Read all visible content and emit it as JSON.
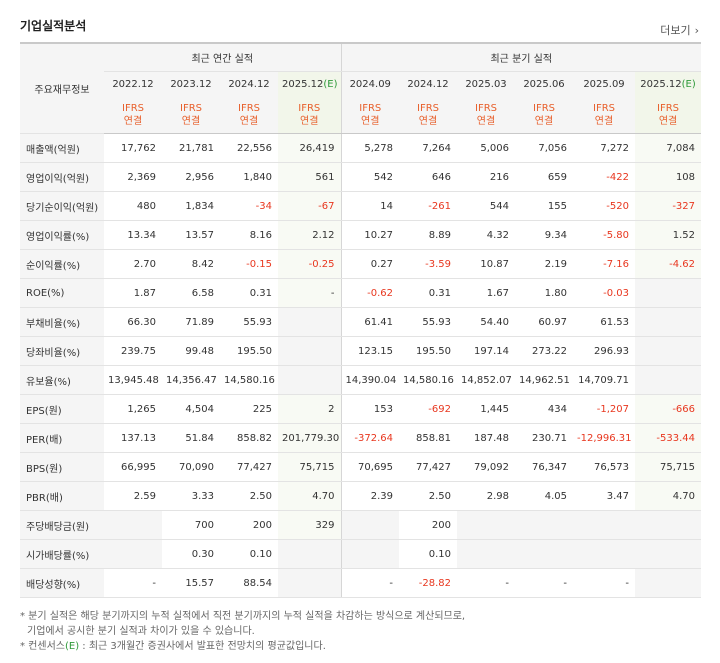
{
  "title": "기업실적분석",
  "more_label": "더보기",
  "header": {
    "label": "주요재무정보",
    "annual_group": "최근 연간 실적",
    "quarter_group": "최근 분기 실적",
    "periods": [
      {
        "label": "2022.12",
        "est": false
      },
      {
        "label": "2023.12",
        "est": false
      },
      {
        "label": "2024.12",
        "est": false
      },
      {
        "label": "2025.12",
        "est": true
      },
      {
        "label": "2024.09",
        "est": false
      },
      {
        "label": "2024.12",
        "est": false
      },
      {
        "label": "2025.03",
        "est": false
      },
      {
        "label": "2025.06",
        "est": false
      },
      {
        "label": "2025.09",
        "est": false
      },
      {
        "label": "2025.12",
        "est": true
      }
    ],
    "est_mark": "(E)",
    "basis_line1": "IFRS",
    "basis_line2": "연결"
  },
  "rows": [
    {
      "label": "매출액(억원)",
      "values": [
        "17,762",
        "21,781",
        "22,556",
        "26,419",
        "5,278",
        "7,264",
        "5,006",
        "7,056",
        "7,272",
        "7,084"
      ]
    },
    {
      "label": "영업이익(억원)",
      "values": [
        "2,369",
        "2,956",
        "1,840",
        "561",
        "542",
        "646",
        "216",
        "659",
        "-422",
        "108"
      ]
    },
    {
      "label": "당기순이익(억원)",
      "values": [
        "480",
        "1,834",
        "-34",
        "-67",
        "14",
        "-261",
        "544",
        "155",
        "-520",
        "-327"
      ]
    },
    {
      "label": "영업이익률(%)",
      "group_start": true,
      "values": [
        "13.34",
        "13.57",
        "8.16",
        "2.12",
        "10.27",
        "8.89",
        "4.32",
        "9.34",
        "-5.80",
        "1.52"
      ]
    },
    {
      "label": "순이익률(%)",
      "values": [
        "2.70",
        "8.42",
        "-0.15",
        "-0.25",
        "0.27",
        "-3.59",
        "10.87",
        "2.19",
        "-7.16",
        "-4.62"
      ]
    },
    {
      "label": "ROE(%)",
      "values": [
        "1.87",
        "6.58",
        "0.31",
        "-",
        "-0.62",
        "0.31",
        "1.67",
        "1.80",
        "-0.03",
        ""
      ]
    },
    {
      "label": "부채비율(%)",
      "group_start": true,
      "values": [
        "66.30",
        "71.89",
        "55.93",
        "",
        "61.41",
        "55.93",
        "54.40",
        "60.97",
        "61.53",
        ""
      ]
    },
    {
      "label": "당좌비율(%)",
      "values": [
        "239.75",
        "99.48",
        "195.50",
        "",
        "123.15",
        "195.50",
        "197.14",
        "273.22",
        "296.93",
        ""
      ]
    },
    {
      "label": "유보율(%)",
      "values": [
        "13,945.48",
        "14,356.47",
        "14,580.16",
        "",
        "14,390.04",
        "14,580.16",
        "14,852.07",
        "14,962.51",
        "14,709.71",
        ""
      ]
    },
    {
      "label": "EPS(원)",
      "group_start": true,
      "values": [
        "1,265",
        "4,504",
        "225",
        "2",
        "153",
        "-692",
        "1,445",
        "434",
        "-1,207",
        "-666"
      ]
    },
    {
      "label": "PER(배)",
      "values": [
        "137.13",
        "51.84",
        "858.82",
        "201,779.30",
        "-372.64",
        "858.81",
        "187.48",
        "230.71",
        "-12,996.31",
        "-533.44"
      ]
    },
    {
      "label": "BPS(원)",
      "values": [
        "66,995",
        "70,090",
        "77,427",
        "75,715",
        "70,695",
        "77,427",
        "79,092",
        "76,347",
        "76,573",
        "75,715"
      ]
    },
    {
      "label": "PBR(배)",
      "values": [
        "2.59",
        "3.33",
        "2.50",
        "4.70",
        "2.39",
        "2.50",
        "2.98",
        "4.05",
        "3.47",
        "4.70"
      ]
    },
    {
      "label": "주당배당금(원)",
      "group_start": true,
      "values": [
        "",
        "700",
        "200",
        "329",
        "",
        "200",
        "",
        "",
        "",
        ""
      ]
    },
    {
      "label": "시가배당률(%)",
      "values": [
        "",
        "0.30",
        "0.10",
        "",
        "",
        "0.10",
        "",
        "",
        "",
        ""
      ]
    },
    {
      "label": "배당성향(%)",
      "values": [
        "-",
        "15.57",
        "88.54",
        "",
        "-",
        "-28.82",
        "-",
        "-",
        "-",
        ""
      ]
    }
  ],
  "notes": {
    "line1": "* 분기 실적은 해당 분기까지의 누적 실적에서 직전 분기까지의 누적 실적을 차감하는 방식으로 계산되므로,",
    "line2": "기업에서 공시한 분기 실적과 차이가 있을 수 있습니다.",
    "line3_prefix": "* 컨센서스",
    "line3_mark": "(E)",
    "line3_suffix": " : 최근 3개월간 증권사에서 발표한 전망치의 평균값입니다."
  },
  "colors": {
    "negative": "#e8371f",
    "ifrs": "#e8602c",
    "estimate": "#2f9a3a"
  }
}
